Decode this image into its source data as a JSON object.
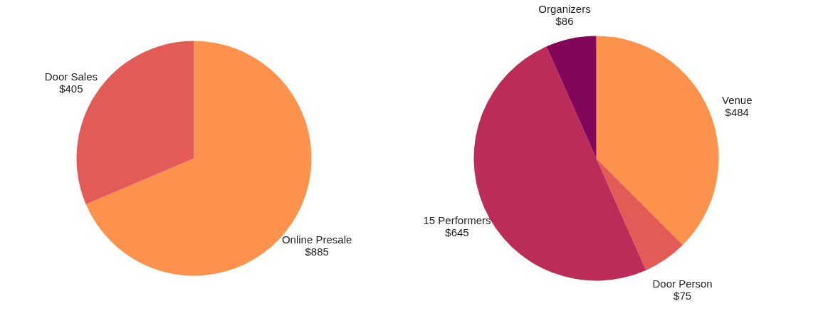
{
  "chart_data": [
    {
      "type": "pie",
      "categories": [
        "Online Presale",
        "Door Sales"
      ],
      "values": [
        885,
        405
      ],
      "colors": [
        "#fd924d",
        "#e35b56"
      ],
      "value_labels": [
        "$885",
        "$405"
      ]
    },
    {
      "type": "pie",
      "categories": [
        "Venue",
        "Door Person",
        "15 Performers",
        "Organizers"
      ],
      "values": [
        484,
        75,
        645,
        86
      ],
      "colors": [
        "#fd924d",
        "#e35b56",
        "#bc2c58",
        "#82075a"
      ],
      "value_labels": [
        "$484",
        "$75",
        "$645",
        "$86"
      ]
    }
  ]
}
